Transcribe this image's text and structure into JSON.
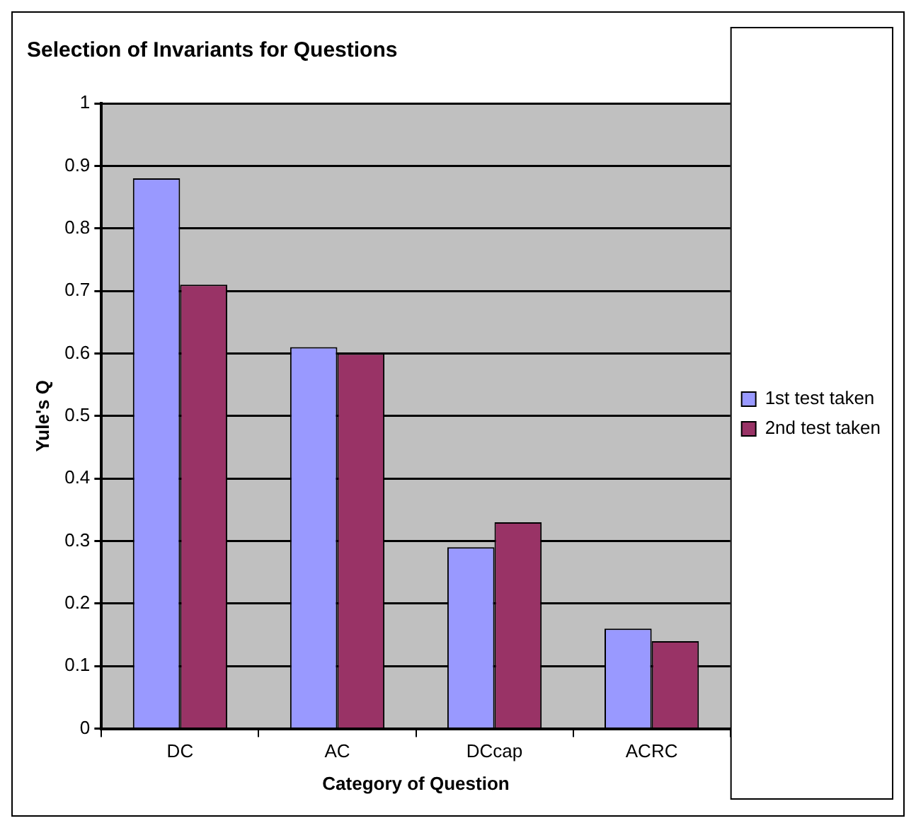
{
  "chart_data": {
    "type": "bar",
    "title": "Selection of Invariants for Questions",
    "xlabel": "Category of Question",
    "ylabel": "Yule's Q",
    "categories": [
      "DC",
      "AC",
      "DCcap",
      "ACRC"
    ],
    "series": [
      {
        "name": "1st test taken",
        "color": "#9999ff",
        "values": [
          0.88,
          0.61,
          0.29,
          0.16
        ]
      },
      {
        "name": "2nd test taken",
        "color": "#993366",
        "values": [
          0.71,
          0.6,
          0.33,
          0.14
        ]
      }
    ],
    "ylim": [
      0,
      1
    ],
    "yticks": [
      0,
      0.1,
      0.2,
      0.3,
      0.4,
      0.5,
      0.6,
      0.7,
      0.8,
      0.9,
      1
    ],
    "grid": "y",
    "legend": "right"
  }
}
